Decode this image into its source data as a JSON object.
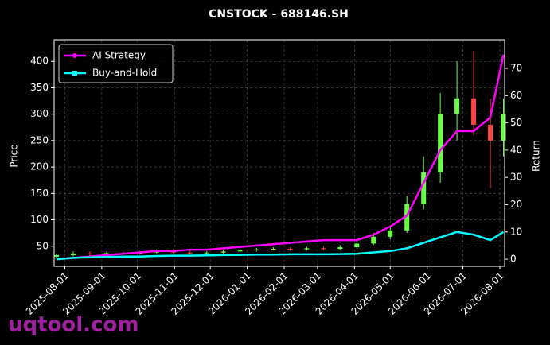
{
  "chart_data": {
    "type": "candlestick",
    "title": "CNSTOCK - 688146.SH",
    "ylabel": "Price",
    "y2label": "Return",
    "watermark": "uqtool.com",
    "x": [
      "2025-07-25",
      "2025-08-08",
      "2025-08-22",
      "2025-09-05",
      "2025-09-19",
      "2025-10-03",
      "2025-10-17",
      "2025-10-31",
      "2025-11-14",
      "2025-11-28",
      "2025-12-12",
      "2025-12-26",
      "2026-01-09",
      "2026-01-23",
      "2026-02-06",
      "2026-02-20",
      "2026-03-06",
      "2026-03-20",
      "2026-04-03",
      "2026-04-17",
      "2026-05-01",
      "2026-05-15",
      "2026-05-29",
      "2026-06-12",
      "2026-06-26",
      "2026-07-10",
      "2026-07-24",
      "2026-08-04"
    ],
    "open": [
      30,
      33,
      36,
      35,
      37,
      36,
      38,
      40,
      38,
      37,
      38,
      40,
      42,
      44,
      45,
      44,
      46,
      45,
      48,
      55,
      68,
      80,
      130,
      190,
      300,
      330,
      280,
      250
    ],
    "high": [
      36,
      40,
      40,
      40,
      40,
      41,
      44,
      45,
      41,
      41,
      43,
      45,
      47,
      48,
      48,
      49,
      49,
      52,
      60,
      75,
      88,
      145,
      220,
      340,
      400,
      420,
      330,
      330
    ],
    "low": [
      28,
      31,
      32,
      33,
      34,
      34,
      36,
      36,
      35,
      35,
      36,
      38,
      40,
      42,
      42,
      42,
      43,
      43,
      45,
      52,
      63,
      75,
      120,
      170,
      250,
      260,
      160,
      220
    ],
    "close": [
      33,
      36,
      35,
      37,
      36,
      38,
      40,
      38,
      37,
      38,
      40,
      42,
      44,
      45,
      44,
      46,
      45,
      48,
      55,
      68,
      80,
      130,
      190,
      300,
      330,
      280,
      250,
      300
    ],
    "up_color": "#66ff44",
    "down_color": "#ff4444",
    "series": [
      {
        "name": "AI Strategy",
        "color": "#ff00ff",
        "axis": "y2",
        "marker": "circle",
        "values": [
          0,
          0.5,
          1,
          1.5,
          2,
          2.5,
          3,
          3,
          3.5,
          3.5,
          4,
          4.5,
          5,
          5.5,
          6,
          6.5,
          7,
          7,
          7,
          9,
          12,
          16,
          28,
          40,
          47,
          47,
          52,
          75
        ]
      },
      {
        "name": "Buy-and-Hold",
        "color": "#00ffff",
        "axis": "y2",
        "marker": "square",
        "values": [
          0,
          0.5,
          0.7,
          0.8,
          1,
          1,
          1.2,
          1.3,
          1.3,
          1.4,
          1.5,
          1.6,
          1.7,
          1.7,
          1.8,
          1.8,
          1.8,
          1.9,
          2,
          2.5,
          3,
          4,
          6,
          8,
          10,
          9,
          7,
          10
        ]
      }
    ],
    "xlim": [
      "2025-07-23",
      "2026-08-05"
    ],
    "xticks": [
      "2025-08-01",
      "2025-09-01",
      "2025-10-01",
      "2025-11-01",
      "2025-12-01",
      "2026-01-01",
      "2026-02-01",
      "2026-03-01",
      "2026-04-01",
      "2026-05-01",
      "2026-06-01",
      "2026-07-01",
      "2026-08-01"
    ],
    "ylim": [
      12,
      441
    ],
    "yticks": [
      50,
      100,
      150,
      200,
      250,
      300,
      350,
      400
    ],
    "y2lim": [
      -2.6,
      80.5
    ],
    "y2ticks": [
      0,
      10,
      20,
      30,
      40,
      50,
      60,
      70
    ],
    "grid": true,
    "legend": "upper left"
  }
}
